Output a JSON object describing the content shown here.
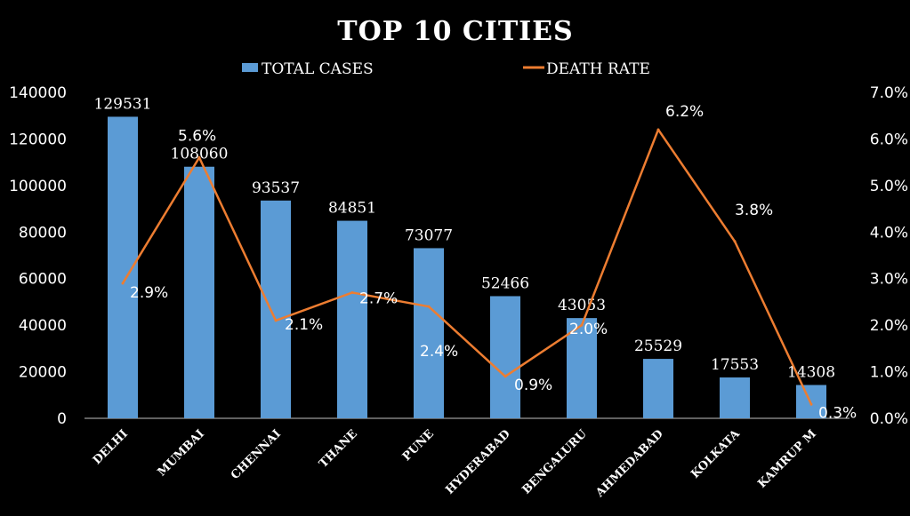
{
  "chart_data": {
    "type": "bar",
    "title": "TOP 10 CITIES",
    "categories": [
      "DELHI",
      "MUMBAI",
      "CHENNAI",
      "THANE",
      "PUNE",
      "HYDERABAD",
      "BENGALURU",
      "AHMEDABAD",
      "KOLKATA",
      "KAMRUP M"
    ],
    "series": [
      {
        "name": "TOTAL CASES",
        "type": "bar",
        "axis": "left",
        "values": [
          129531,
          108060,
          93537,
          84851,
          73077,
          52466,
          43053,
          25529,
          17553,
          14308
        ],
        "labels": [
          "129531",
          "108060",
          "93537",
          "84851",
          "73077",
          "52466",
          "43053",
          "25529",
          "17553",
          "14308"
        ]
      },
      {
        "name": "DEATH RATE",
        "type": "line",
        "axis": "right",
        "values": [
          2.9,
          5.6,
          2.1,
          2.7,
          2.4,
          0.9,
          2.0,
          6.2,
          3.8,
          0.3
        ],
        "labels": [
          "2.9%",
          "5.6%",
          "2.1%",
          "2.7%",
          "2.4%",
          "0.9%",
          "2.0%",
          "6.2%",
          "3.8%",
          "0.3%"
        ]
      }
    ],
    "y_left": {
      "lim": [
        0,
        140000
      ],
      "ticks": [
        0,
        20000,
        40000,
        60000,
        80000,
        100000,
        120000,
        140000
      ],
      "tick_labels": [
        "0",
        "20000",
        "40000",
        "60000",
        "80000",
        "100000",
        "120000",
        "140000"
      ]
    },
    "y_right": {
      "lim": [
        0,
        7
      ],
      "ticks": [
        0,
        1,
        2,
        3,
        4,
        5,
        6,
        7
      ],
      "tick_labels": [
        "0.0%",
        "1.0%",
        "2.0%",
        "3.0%",
        "4.0%",
        "5.0%",
        "6.0%",
        "7.0%"
      ]
    },
    "xlabel": "",
    "ylabel": "",
    "grid": false,
    "legend": "top",
    "colors": {
      "bar": "#5B9BD5",
      "line": "#ED7D31",
      "background": "#000000",
      "text": "#FFFFFF"
    }
  }
}
